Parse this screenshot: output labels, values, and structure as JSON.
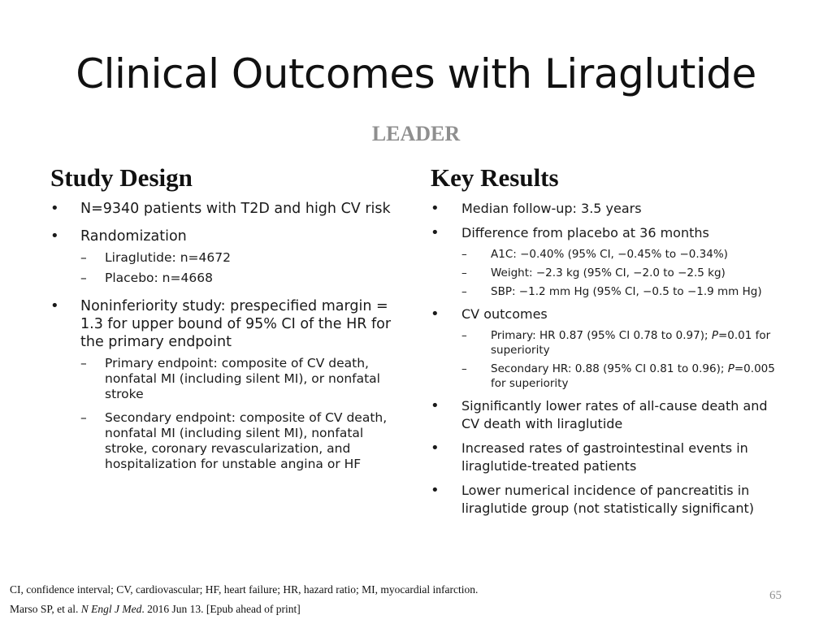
{
  "slide": {
    "title": "Clinical Outcomes with Liraglutide",
    "subtitle": "LEADER",
    "page_number": "65"
  },
  "study_design": {
    "heading": "Study Design",
    "bullets": [
      {
        "text": "N=9340 patients with T2D and high CV risk"
      },
      {
        "text": "Randomization",
        "sub": [
          "Liraglutide: n=4672",
          "Placebo: n=4668"
        ]
      },
      {
        "text": "Noninferiority study: prespecified margin = 1.3 for upper bound of 95% CI of the HR for the primary endpoint",
        "sub": [
          "Primary endpoint: composite of CV death, nonfatal MI (including silent MI), or nonfatal stroke",
          "Secondary endpoint: composite of CV death, nonfatal MI (including silent MI), nonfatal stroke, coronary revascularization, and hospitalization for unstable angina or HF"
        ]
      }
    ]
  },
  "key_results": {
    "heading": "Key Results",
    "bullets": [
      {
        "text": "Median follow-up: 3.5 years"
      },
      {
        "text": "Difference from placebo at 36 months",
        "sub": [
          "A1C: −0.40% (95% CI, −0.45% to −0.34%)",
          "Weight: −2.3 kg (95% CI, −2.0 to −2.5 kg)",
          "SBP:  −1.2 mm Hg (95% CI, −0.5 to −1.9 mm Hg)"
        ]
      },
      {
        "text": "CV outcomes",
        "sub_parts": [
          {
            "before": "Primary: HR 0.87 (95% CI 0.78 to 0.97); ",
            "italic": "P",
            "after": "=0.01 for superiority"
          },
          {
            "before": "Secondary HR: 0.88 (95% CI 0.81 to 0.96); ",
            "italic": "P",
            "after": "=0.005 for superiority"
          }
        ]
      },
      {
        "text": "Significantly lower rates of all-cause death and CV death with liraglutide"
      },
      {
        "text": "Increased rates of gastrointestinal events in liraglutide-treated patients"
      },
      {
        "text": "Lower numerical incidence of pancreatitis in liraglutide group (not statistically significant)"
      }
    ]
  },
  "footnotes": {
    "abbreviations": "CI, confidence interval; CV, cardiovascular; HF, heart failure; HR, hazard ratio; MI, myocardial infarction.",
    "citation_authors": "Marso SP, et al. ",
    "citation_journal": "N Engl J Med",
    "citation_rest": ". 2016 Jun 13. [Epub ahead of print]"
  }
}
